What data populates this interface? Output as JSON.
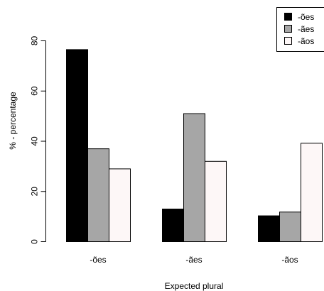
{
  "chart_data": {
    "type": "bar",
    "grouped": true,
    "categories": [
      "-ões",
      "-ães",
      "-ãos"
    ],
    "series": [
      {
        "name": "-ões",
        "color": "#000000",
        "values": [
          76.5,
          13.0,
          10.3
        ]
      },
      {
        "name": "-ães",
        "color": "#a6a6a6",
        "values": [
          37.0,
          51.0,
          11.8
        ]
      },
      {
        "name": "-ãos",
        "color": "#fdf7f7",
        "values": [
          29.0,
          32.0,
          39.2
        ]
      }
    ],
    "xlabel": "Expected plural",
    "ylabel": "% - percentage",
    "ylim": [
      0,
      80
    ],
    "yticks": [
      0,
      20,
      40,
      60,
      80
    ],
    "grid": false,
    "legend_position": "top-right"
  }
}
